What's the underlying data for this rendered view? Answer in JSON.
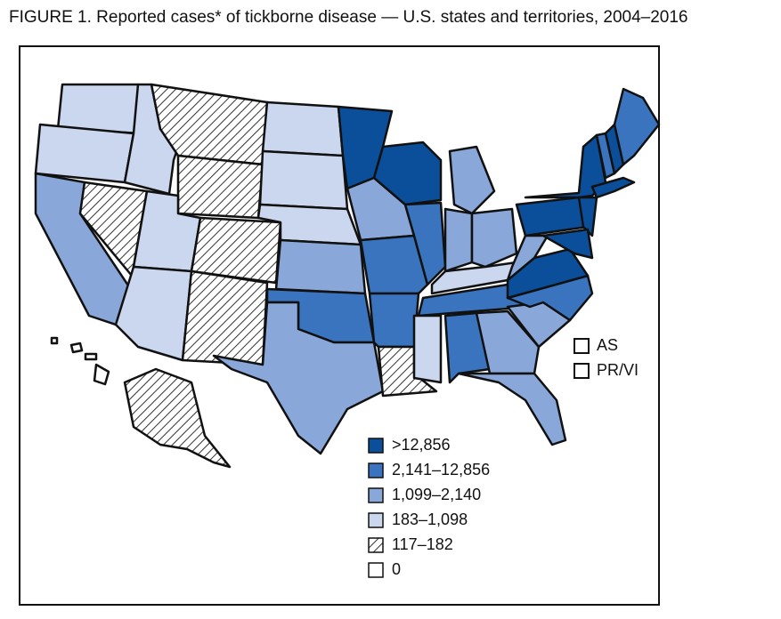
{
  "title": "FIGURE 1. Reported cases* of tickborne disease — U.S. states and territories, 2004–2016",
  "legend": [
    {
      "label": ">12,856"
    },
    {
      "label": "2,141–12,856"
    },
    {
      "label": "1,099–2,140"
    },
    {
      "label": "183–1,098"
    },
    {
      "label": "117–182"
    },
    {
      "label": "0"
    }
  ],
  "territories": [
    {
      "label": "AS"
    },
    {
      "label": "PR/VI"
    }
  ]
}
